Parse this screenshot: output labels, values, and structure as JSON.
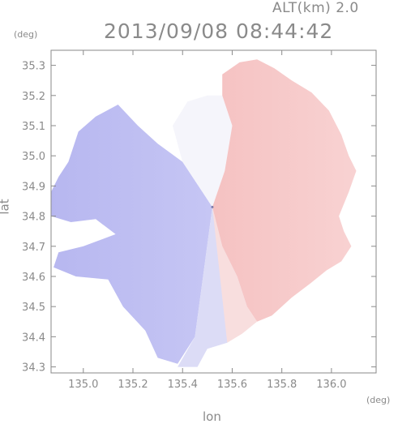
{
  "header": {
    "altitude_label": "ALT(km) 2.0",
    "timestamp": "2013/09/08 08:44:42"
  },
  "chart_data": {
    "type": "heatmap",
    "title": "2013/09/08 08:44:42",
    "subtitle": "ALT(km) 2.0",
    "xlabel": "lon",
    "ylabel": "lat",
    "x_unit": "(deg)",
    "y_unit": "(deg)",
    "xlim": [
      134.87,
      136.18
    ],
    "ylim": [
      34.28,
      35.35
    ],
    "xticks": [
      {
        "value": 135.0,
        "label": "135.0"
      },
      {
        "value": 135.2,
        "label": "135.2"
      },
      {
        "value": 135.4,
        "label": "135.4"
      },
      {
        "value": 135.6,
        "label": "135.6"
      },
      {
        "value": 135.8,
        "label": "135.8"
      },
      {
        "value": 136.0,
        "label": "136.0"
      }
    ],
    "yticks": [
      {
        "value": 34.3,
        "label": "34.3"
      },
      {
        "value": 34.4,
        "label": "34.4"
      },
      {
        "value": 34.5,
        "label": "34.5"
      },
      {
        "value": 34.6,
        "label": "34.6"
      },
      {
        "value": 34.7,
        "label": "34.7"
      },
      {
        "value": 34.8,
        "label": "34.8"
      },
      {
        "value": 34.9,
        "label": "34.9"
      },
      {
        "value": 35.0,
        "label": "35.0"
      },
      {
        "value": 35.1,
        "label": "35.1"
      },
      {
        "value": 35.2,
        "label": "35.2"
      },
      {
        "value": 35.3,
        "label": "35.3"
      }
    ],
    "radar_center": {
      "lon": 135.52,
      "lat": 34.83
    },
    "colors": {
      "negative": "#b9b9f2",
      "negative_light": "#dcdcf6",
      "neutral": "#f5f5fb",
      "positive_light": "#f8dede",
      "positive": "#f6c0c0",
      "axis": "#8a8a8a"
    },
    "regions": [
      {
        "name": "west",
        "tone": "negative",
        "outline": [
          [
            135.52,
            34.83
          ],
          [
            135.4,
            34.98
          ],
          [
            135.3,
            35.04
          ],
          [
            135.22,
            35.1
          ],
          [
            135.14,
            35.17
          ],
          [
            135.05,
            35.13
          ],
          [
            134.98,
            35.08
          ],
          [
            134.94,
            34.98
          ],
          [
            134.9,
            34.93
          ],
          [
            134.87,
            34.88
          ],
          [
            134.87,
            34.8
          ],
          [
            134.95,
            34.78
          ],
          [
            135.05,
            34.79
          ],
          [
            135.13,
            34.74
          ],
          [
            135.0,
            34.7
          ],
          [
            134.9,
            34.68
          ],
          [
            134.88,
            34.63
          ],
          [
            134.97,
            34.6
          ],
          [
            135.1,
            34.59
          ],
          [
            135.16,
            34.5
          ],
          [
            135.25,
            34.42
          ],
          [
            135.3,
            34.33
          ],
          [
            135.38,
            34.31
          ],
          [
            135.45,
            34.4
          ],
          [
            135.52,
            34.83
          ]
        ]
      },
      {
        "name": "south",
        "tone": "negative_light",
        "outline": [
          [
            135.52,
            34.83
          ],
          [
            135.45,
            34.4
          ],
          [
            135.38,
            34.3
          ],
          [
            135.46,
            34.3
          ],
          [
            135.5,
            34.36
          ],
          [
            135.58,
            34.38
          ],
          [
            135.64,
            34.42
          ],
          [
            135.66,
            34.5
          ],
          [
            135.62,
            34.6
          ],
          [
            135.56,
            34.7
          ],
          [
            135.52,
            34.83
          ]
        ]
      },
      {
        "name": "north",
        "tone": "neutral",
        "outline": [
          [
            135.52,
            34.83
          ],
          [
            135.4,
            34.98
          ],
          [
            135.36,
            35.1
          ],
          [
            135.42,
            35.18
          ],
          [
            135.5,
            35.2
          ],
          [
            135.56,
            35.2
          ],
          [
            135.6,
            35.1
          ],
          [
            135.57,
            34.95
          ],
          [
            135.52,
            34.83
          ]
        ]
      },
      {
        "name": "east",
        "tone": "positive",
        "outline": [
          [
            135.52,
            34.83
          ],
          [
            135.57,
            34.95
          ],
          [
            135.6,
            35.1
          ],
          [
            135.56,
            35.2
          ],
          [
            135.56,
            35.27
          ],
          [
            135.63,
            35.31
          ],
          [
            135.7,
            35.32
          ],
          [
            135.77,
            35.29
          ],
          [
            135.84,
            35.25
          ],
          [
            135.92,
            35.21
          ],
          [
            135.99,
            35.15
          ],
          [
            136.04,
            35.07
          ],
          [
            136.07,
            35.0
          ],
          [
            136.1,
            34.95
          ],
          [
            136.07,
            34.88
          ],
          [
            136.03,
            34.8
          ],
          [
            136.05,
            34.75
          ],
          [
            136.08,
            34.7
          ],
          [
            136.04,
            34.65
          ],
          [
            135.98,
            34.62
          ],
          [
            135.92,
            34.58
          ],
          [
            135.84,
            34.53
          ],
          [
            135.76,
            34.47
          ],
          [
            135.7,
            34.45
          ],
          [
            135.66,
            34.5
          ],
          [
            135.62,
            34.6
          ],
          [
            135.56,
            34.7
          ],
          [
            135.52,
            34.83
          ]
        ]
      },
      {
        "name": "east-south",
        "tone": "positive_light",
        "outline": [
          [
            135.52,
            34.83
          ],
          [
            135.56,
            34.7
          ],
          [
            135.62,
            34.6
          ],
          [
            135.66,
            34.5
          ],
          [
            135.7,
            34.45
          ],
          [
            135.64,
            34.41
          ],
          [
            135.58,
            34.38
          ],
          [
            135.52,
            34.83
          ]
        ]
      }
    ]
  }
}
